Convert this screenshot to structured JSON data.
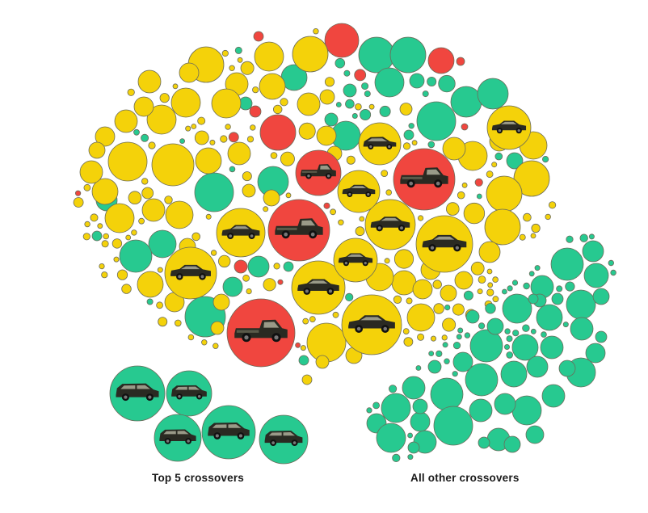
{
  "chart_data": {
    "type": "bubble",
    "title": "",
    "categories": [
      "Car",
      "Pickup truck",
      "Crossover"
    ],
    "colors": {
      "Car": "#F4D20A",
      "Pickup truck": "#F0463F",
      "Crossover": "#27C990",
      "outline": "#6B6B5A"
    },
    "groups": [
      {
        "label": "Top 5 crossovers",
        "category": "Crossover",
        "count": 5
      },
      {
        "label": "All other crossovers",
        "category": "Crossover"
      }
    ],
    "featured_vehicles": [
      {
        "category": "Pickup truck",
        "icon": "pickup-icon",
        "rank": 1
      },
      {
        "category": "Pickup truck",
        "icon": "pickup-icon",
        "rank": 2
      },
      {
        "category": "Pickup truck",
        "icon": "pickup-icon",
        "rank": 3
      },
      {
        "category": "Pickup truck",
        "icon": "pickup-icon",
        "rank": 4
      },
      {
        "category": "Car",
        "icon": "sedan-icon",
        "rank": 5
      },
      {
        "category": "Car",
        "icon": "sedan-icon",
        "rank": 6
      },
      {
        "category": "Car",
        "icon": "sedan-icon",
        "rank": 7
      },
      {
        "category": "Car",
        "icon": "sedan-icon",
        "rank": 8
      },
      {
        "category": "Car",
        "icon": "sedan-icon",
        "rank": 9
      },
      {
        "category": "Car",
        "icon": "sedan-icon",
        "rank": 10
      },
      {
        "category": "Car",
        "icon": "sedan-icon",
        "rank": 11
      },
      {
        "category": "Car",
        "icon": "hatchback-icon",
        "rank": 12
      },
      {
        "category": "Car",
        "icon": "sedan-icon",
        "rank": 13
      },
      {
        "category": "Car",
        "icon": "sedan-icon",
        "rank": 14
      },
      {
        "category": "Crossover",
        "icon": "suv-icon",
        "rank": 15
      },
      {
        "category": "Crossover",
        "icon": "suv-icon",
        "rank": 16
      },
      {
        "category": "Crossover",
        "icon": "suv-icon",
        "rank": 17
      },
      {
        "category": "Crossover",
        "icon": "suv-icon",
        "rank": 18
      },
      {
        "category": "Crossover",
        "icon": "suv-icon",
        "rank": 19
      }
    ]
  },
  "labels": {
    "top5": "Top 5 crossovers",
    "other": "All other crossovers"
  }
}
